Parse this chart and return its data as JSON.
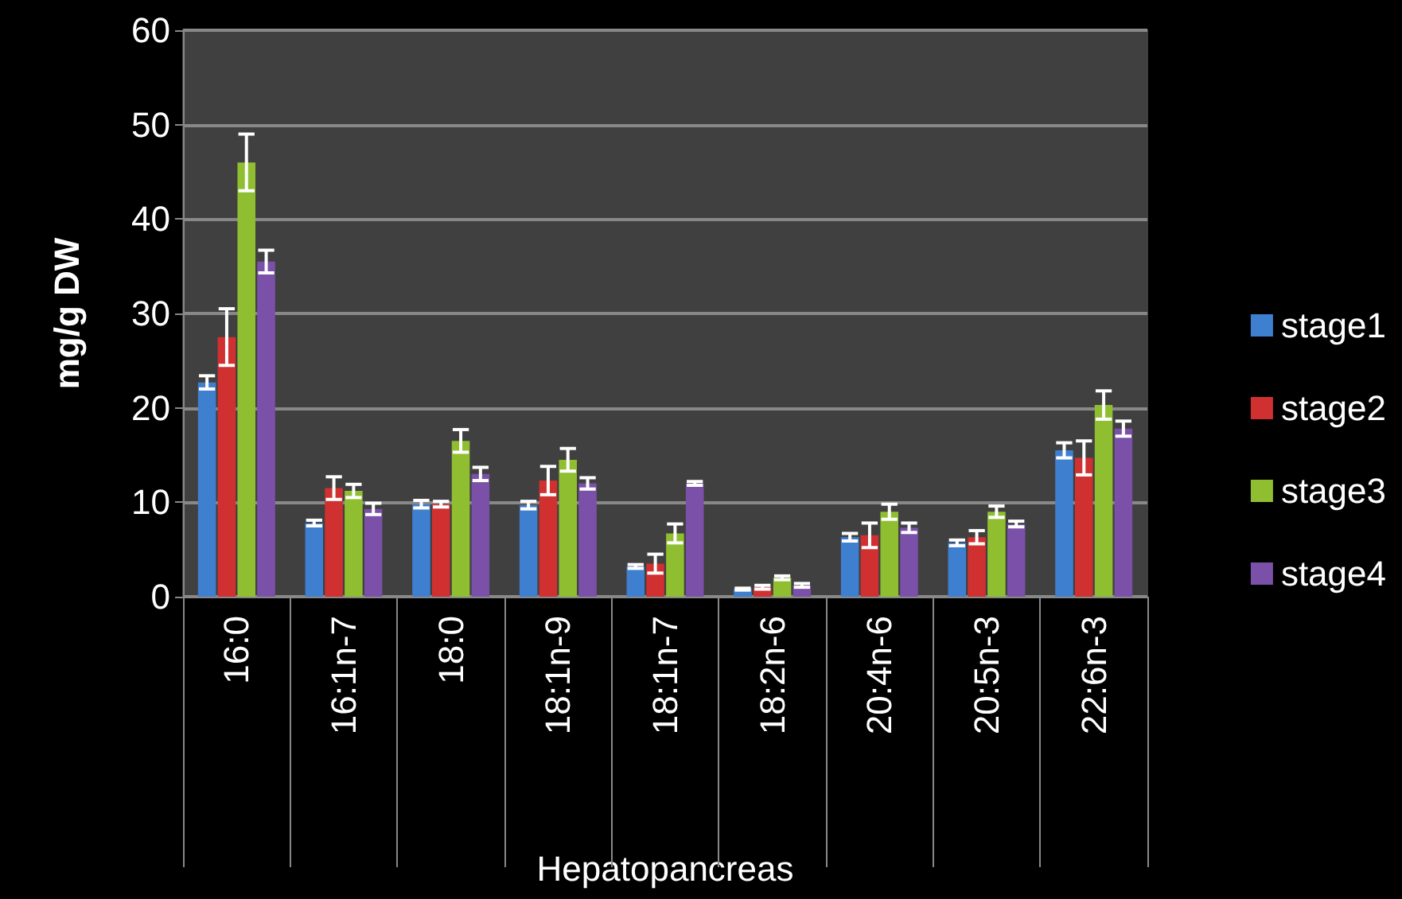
{
  "chart_data": {
    "type": "bar",
    "xlabel": "Hepatopancreas",
    "ylabel": "mg/g DW",
    "categories": [
      "16:0",
      "16:1n-7",
      "18:0",
      "18:1n-9",
      "18:1n-7",
      "18:2n-6",
      "20:4n-6",
      "20:5n-3",
      "22:6n-3"
    ],
    "series": [
      {
        "name": "stage1",
        "color": "#3f7fcf",
        "values": [
          22.7,
          7.8,
          9.8,
          9.7,
          3.2,
          0.8,
          6.3,
          5.7,
          15.5
        ],
        "errors": [
          0.7,
          0.3,
          0.4,
          0.4,
          0.2,
          0.1,
          0.4,
          0.3,
          0.8
        ]
      },
      {
        "name": "stage2",
        "color": "#d03030",
        "values": [
          27.5,
          11.5,
          9.8,
          12.3,
          3.5,
          1.0,
          6.5,
          6.3,
          14.7
        ],
        "errors": [
          3,
          1.2,
          0.3,
          1.5,
          1,
          0.2,
          1.3,
          0.7,
          1.8
        ]
      },
      {
        "name": "stage3",
        "color": "#8fbf30",
        "values": [
          46,
          11.2,
          16.5,
          14.5,
          6.7,
          2.0,
          9,
          9,
          20.3
        ],
        "errors": [
          3,
          0.7,
          1.2,
          1.2,
          1,
          0.2,
          0.8,
          0.6,
          1.5
        ]
      },
      {
        "name": "stage4",
        "color": "#7a50a8",
        "values": [
          35.5,
          9.3,
          13,
          12,
          12,
          1.2,
          7.3,
          7.7,
          17.8
        ],
        "errors": [
          1.2,
          0.6,
          0.7,
          0.6,
          0.2,
          0.2,
          0.5,
          0.3,
          0.8
        ]
      }
    ],
    "ylim": [
      0,
      60
    ],
    "yticks": [
      0,
      10,
      20,
      30,
      40,
      50,
      60
    ],
    "grid": "y",
    "legend": "right"
  }
}
